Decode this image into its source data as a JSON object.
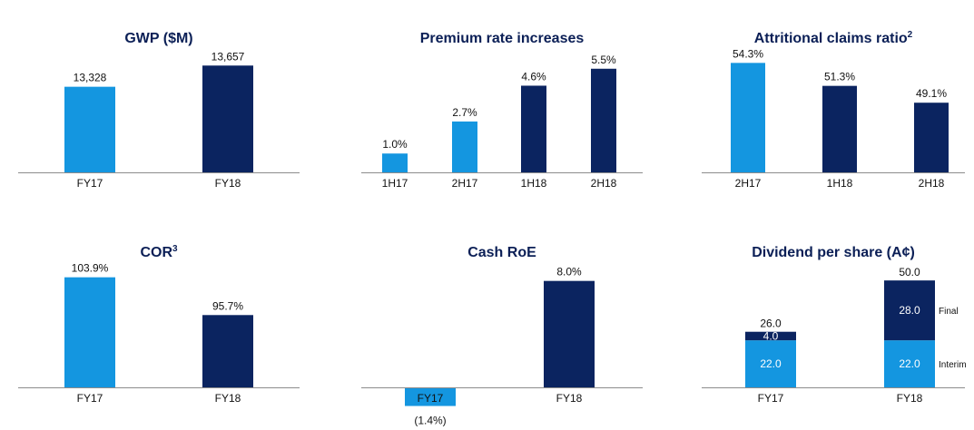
{
  "colors": {
    "light": "#1496e0",
    "dark": "#0b2460",
    "axis": "#8c8c8c",
    "title": "#0b1f56"
  },
  "chart_data": [
    {
      "type": "bar",
      "title": "GWP ($M)",
      "superscript": "",
      "categories": [
        "FY17",
        "FY18"
      ],
      "values": [
        13328,
        13657
      ],
      "labels": [
        "13,328",
        "13,657"
      ],
      "colors": [
        "light",
        "dark"
      ],
      "ylim": [
        12000,
        13900
      ]
    },
    {
      "type": "bar",
      "title": "Premium rate increases",
      "superscript": "",
      "categories": [
        "1H17",
        "2H17",
        "1H18",
        "2H18"
      ],
      "values": [
        1.0,
        2.7,
        4.6,
        5.5
      ],
      "labels": [
        "1.0%",
        "2.7%",
        "4.6%",
        "5.5%"
      ],
      "colors": [
        "light",
        "light",
        "dark",
        "dark"
      ],
      "ylim": [
        0,
        6.5
      ]
    },
    {
      "type": "bar",
      "title": "Attritional claims ratio",
      "superscript": "2",
      "categories": [
        "2H17",
        "1H18",
        "2H18"
      ],
      "values": [
        54.3,
        51.3,
        49.1
      ],
      "labels": [
        "54.3%",
        "51.3%",
        "49.1%"
      ],
      "colors": [
        "light",
        "dark",
        "dark"
      ],
      "ylim": [
        40,
        56
      ]
    },
    {
      "type": "bar",
      "title": "COR",
      "superscript": "3",
      "categories": [
        "FY17",
        "FY18"
      ],
      "values": [
        103.9,
        95.7
      ],
      "labels": [
        "103.9%",
        "95.7%"
      ],
      "colors": [
        "light",
        "dark"
      ],
      "ylim": [
        80,
        106
      ]
    },
    {
      "type": "bar",
      "title": "Cash RoE",
      "superscript": "",
      "categories": [
        "FY17",
        "FY18"
      ],
      "values": [
        -1.4,
        8.0
      ],
      "labels": [
        "(1.4%)",
        "8.0%"
      ],
      "colors": [
        "light",
        "dark"
      ],
      "ylim": [
        -2,
        9
      ]
    },
    {
      "type": "stacked_bar",
      "title": "Dividend per share (A¢)",
      "superscript": "",
      "categories": [
        "FY17",
        "FY18"
      ],
      "series": [
        {
          "name": "Interim",
          "values": [
            22.0,
            22.0
          ],
          "labels": [
            "22.0",
            "22.0"
          ],
          "color": "light"
        },
        {
          "name": "Final",
          "values": [
            4.0,
            28.0
          ],
          "labels": [
            "4.0",
            "28.0"
          ],
          "color": "dark"
        }
      ],
      "totals": [
        26.0,
        50.0
      ],
      "total_labels": [
        "26.0",
        "50.0"
      ],
      "ylim": [
        0,
        56
      ]
    }
  ]
}
